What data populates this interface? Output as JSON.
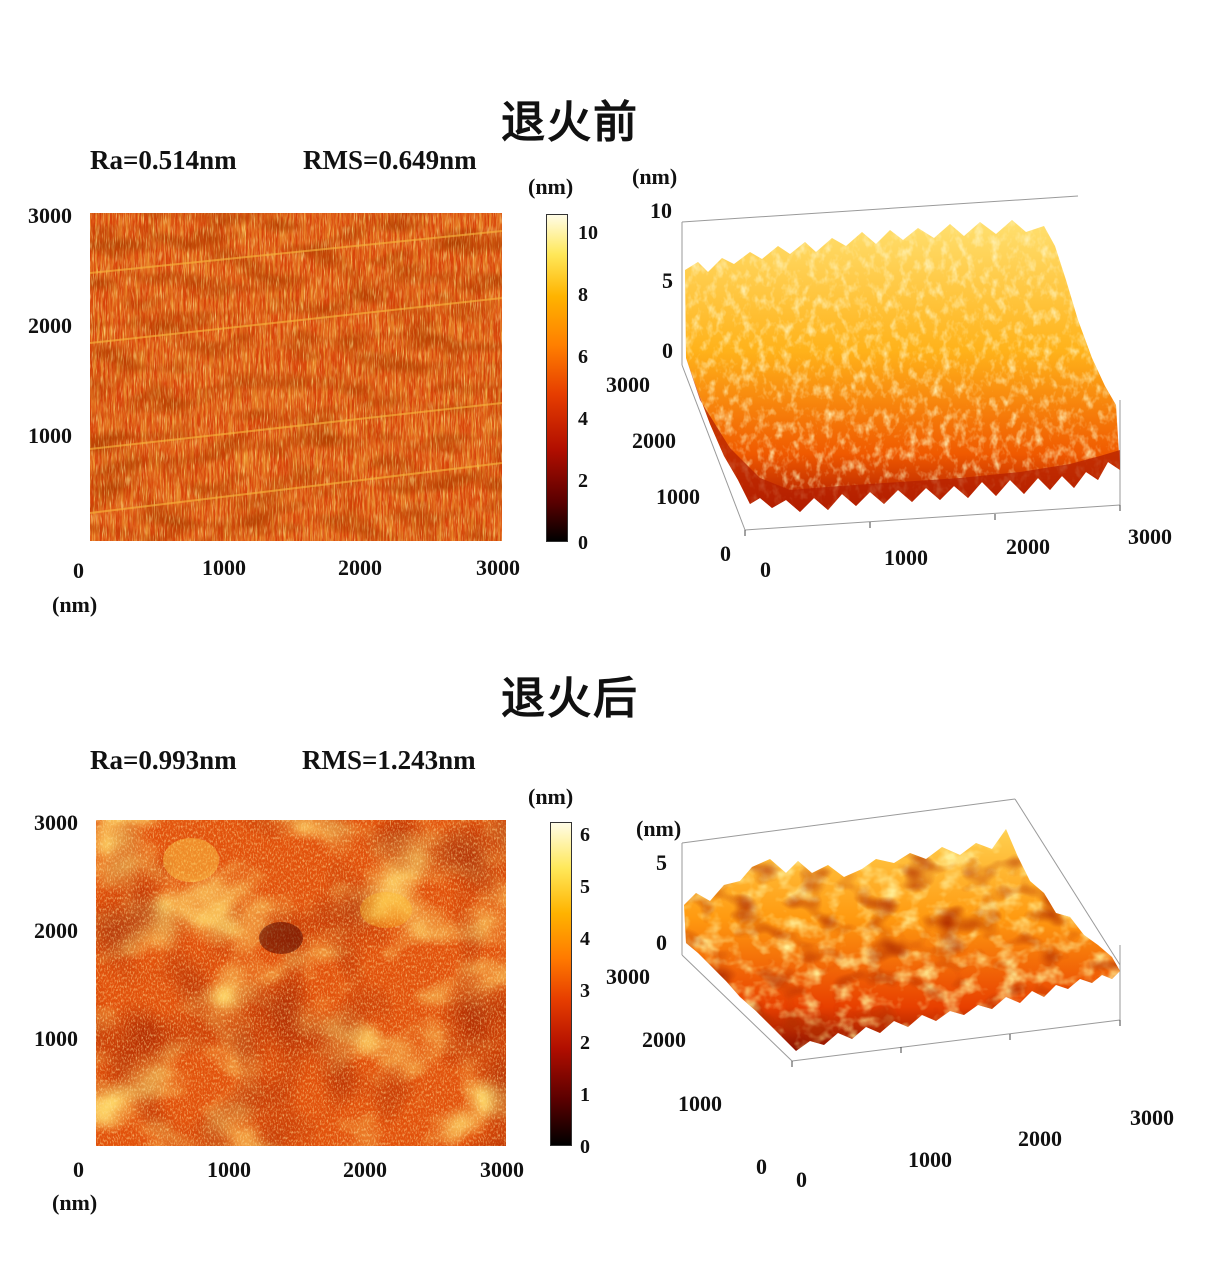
{
  "panels": [
    {
      "title": "退火前",
      "ra": "Ra=0.514nm",
      "rms": "RMS=0.649nm",
      "map_y_ticks": [
        "3000",
        "2000",
        "1000"
      ],
      "map_x_ticks": [
        "0",
        "1000",
        "2000",
        "3000"
      ],
      "map_unit": "(nm)",
      "colorbar_unit": "(nm)",
      "colorbar_ticks": [
        "10",
        "8",
        "6",
        "4",
        "2",
        "0"
      ],
      "surface_z_unit": "(nm)",
      "surface_z_ticks": [
        "10",
        "5",
        "0"
      ],
      "surface_y_ticks": [
        "3000",
        "2000",
        "1000",
        "0"
      ],
      "surface_x_ticks": [
        "0",
        "1000",
        "2000",
        "3000"
      ]
    },
    {
      "title": "退火后",
      "ra": "Ra=0.993nm",
      "rms": "RMS=1.243nm",
      "map_y_ticks": [
        "3000",
        "2000",
        "1000"
      ],
      "map_x_ticks": [
        "0",
        "1000",
        "2000",
        "3000"
      ],
      "map_unit": "(nm)",
      "colorbar_unit": "(nm)",
      "colorbar_ticks": [
        "6",
        "5",
        "4",
        "3",
        "2",
        "1",
        "0"
      ],
      "surface_z_unit": "(nm)",
      "surface_z_ticks": [
        "5",
        "0"
      ],
      "surface_y_ticks": [
        "3000",
        "2000",
        "1000",
        "0"
      ],
      "surface_x_ticks": [
        "0",
        "1000",
        "2000",
        "3000"
      ]
    }
  ],
  "chart_data": [
    {
      "type": "heatmap",
      "title": "退火前",
      "x_range": [
        0,
        3000
      ],
      "y_range": [
        0,
        3000
      ],
      "x_unit": "nm",
      "colorbar_range": [
        0,
        10
      ],
      "colorbar_unit": "nm",
      "Ra_nm": 0.514,
      "RMS_nm": 0.649,
      "colormap": "hot"
    },
    {
      "type": "heatmap",
      "title": "退火后",
      "x_range": [
        0,
        3000
      ],
      "y_range": [
        0,
        3000
      ],
      "x_unit": "nm",
      "colorbar_range": [
        0,
        6
      ],
      "colorbar_unit": "nm",
      "Ra_nm": 0.993,
      "RMS_nm": 1.243,
      "colormap": "hot"
    }
  ]
}
